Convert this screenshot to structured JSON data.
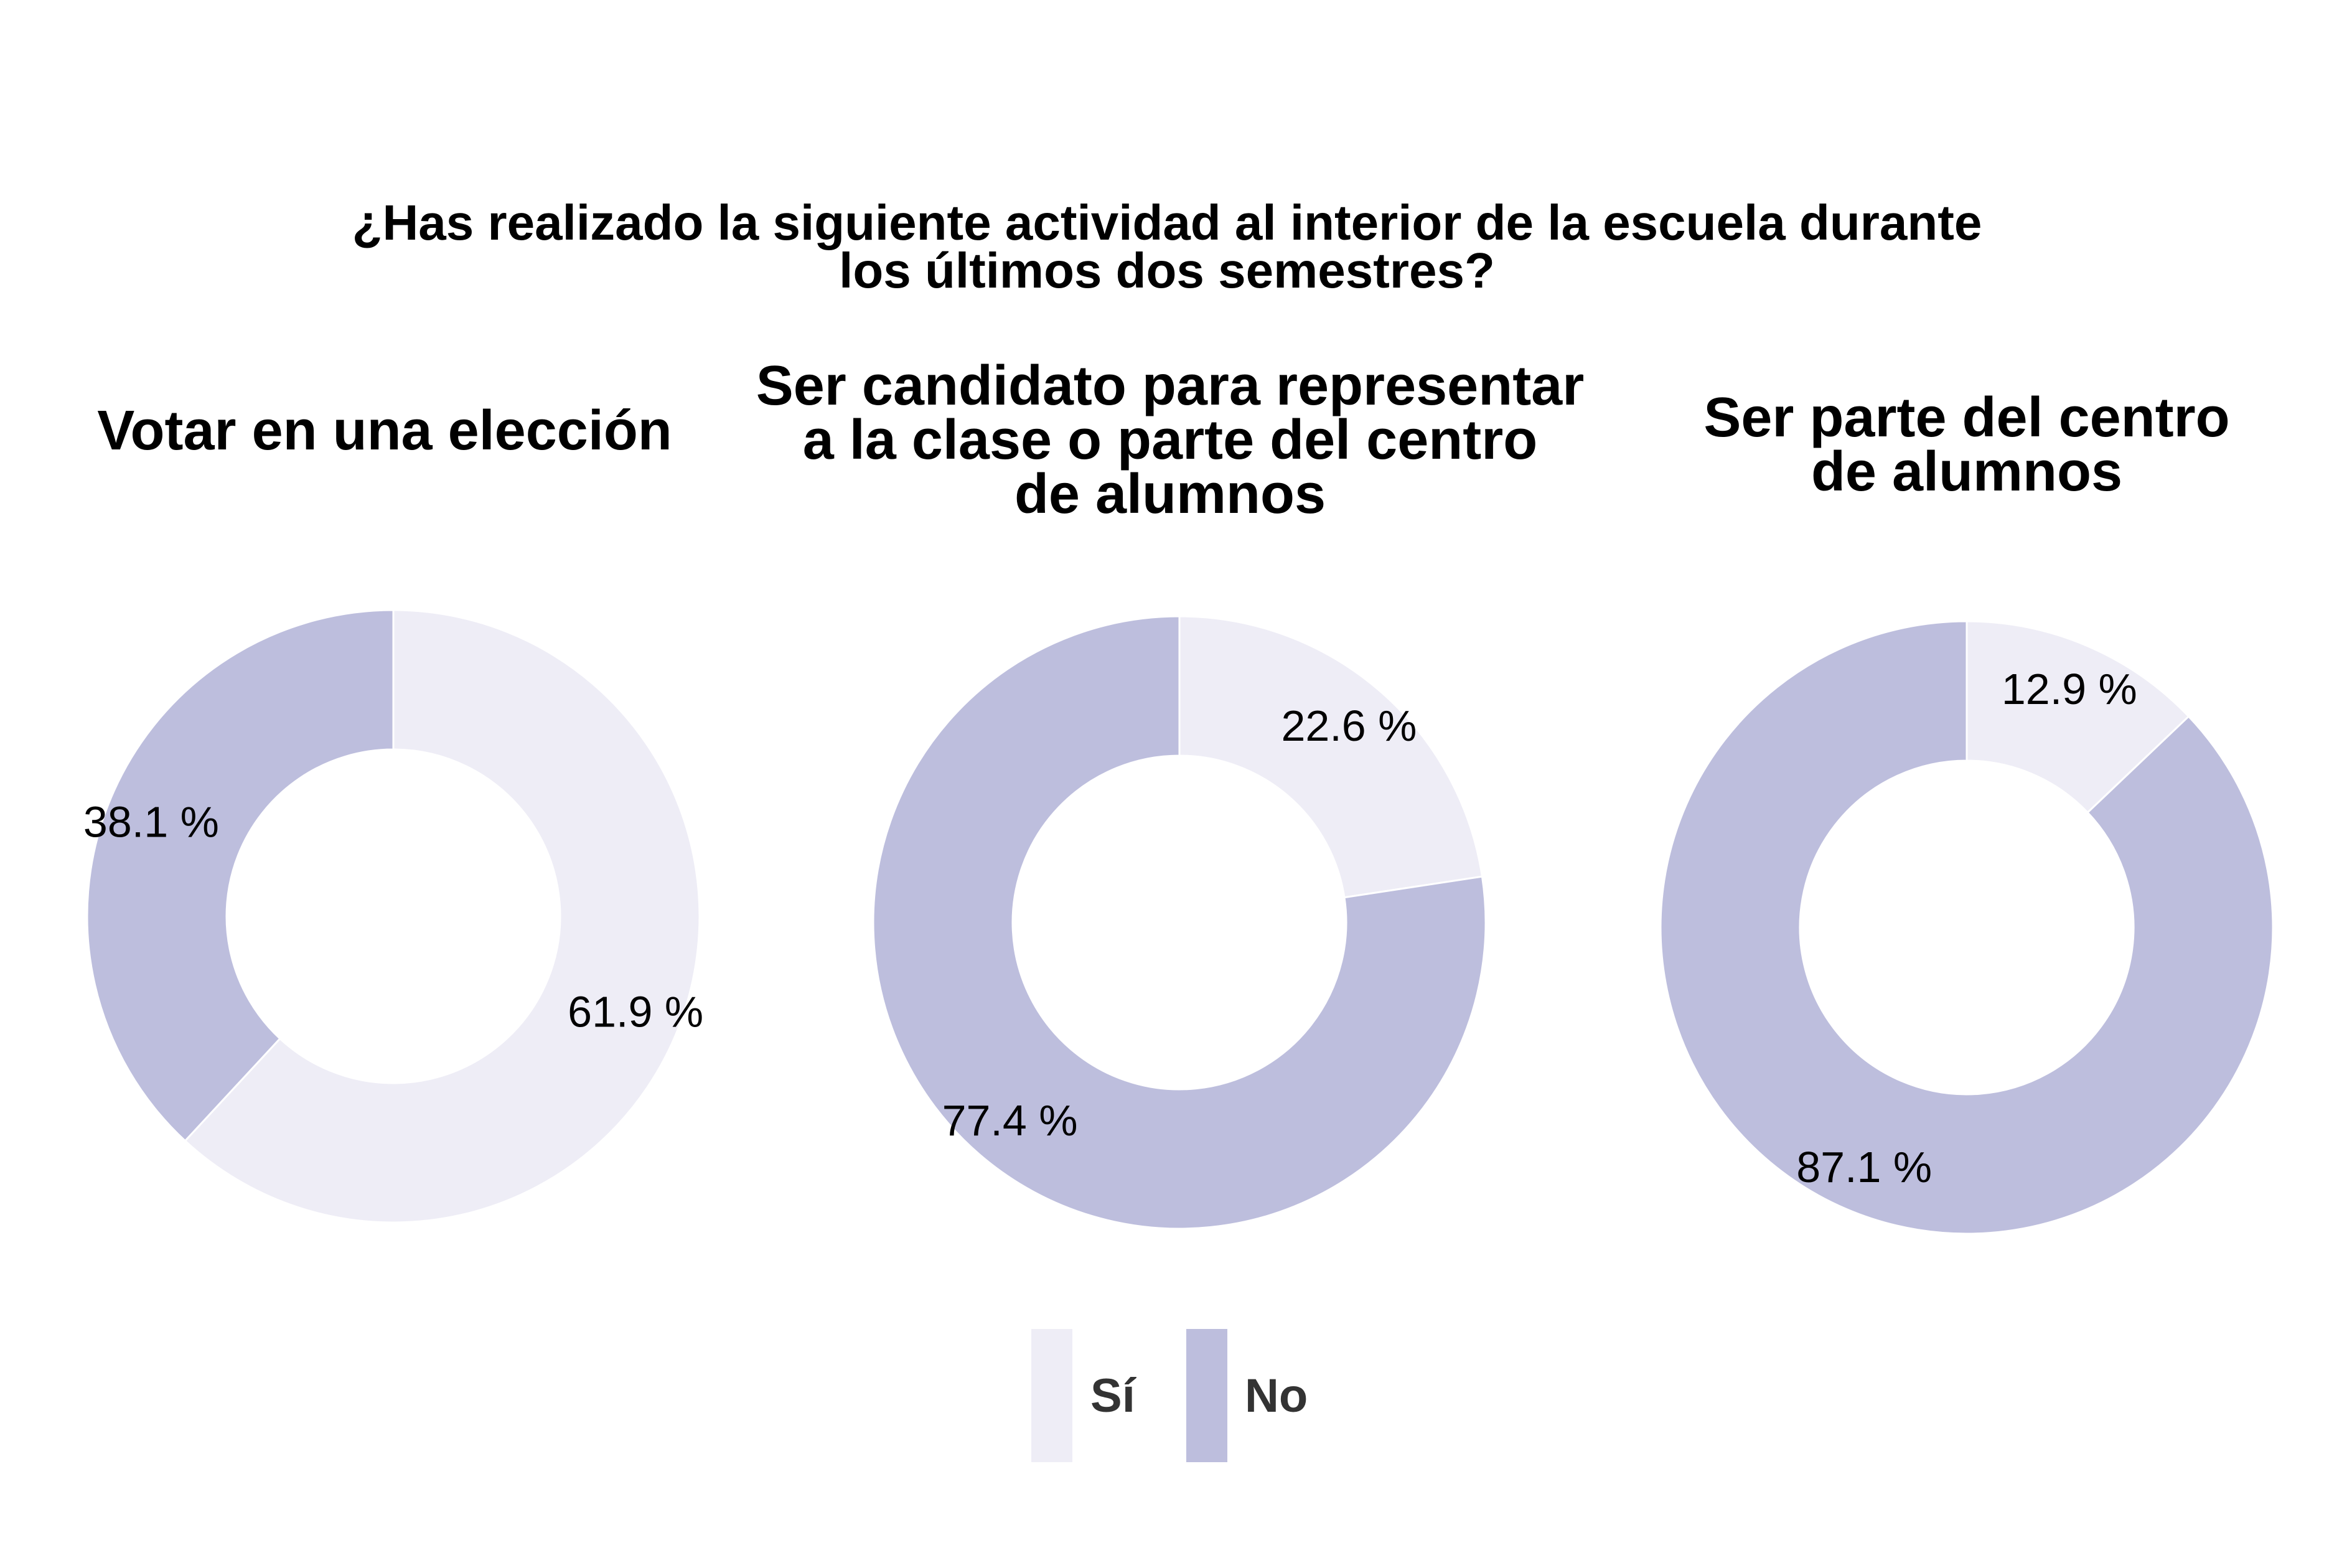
{
  "chart_data": {
    "type": "pie",
    "variant": "donut",
    "title_lines": [
      "¿Has realizado la siguiente actividad al interior de la escuela durante",
      "los últimos dos semestres?"
    ],
    "categories": [
      "Sí",
      "No"
    ],
    "colors": {
      "Sí": "#eeedf6",
      "No": "#bdbedd"
    },
    "value_suffix": " %",
    "panels": [
      {
        "title_lines": [
          "Votar en una elección"
        ],
        "values": {
          "Sí": 61.9,
          "No": 38.1
        }
      },
      {
        "title_lines": [
          "Ser candidato para representar",
          "a la clase o parte del centro",
          "de alumnos"
        ],
        "values": {
          "Sí": 22.6,
          "No": 77.4
        }
      },
      {
        "title_lines": [
          "Ser parte del centro",
          "de alumnos"
        ],
        "values": {
          "Sí": 12.9,
          "No": 87.1
        }
      }
    ],
    "legend": {
      "position": "bottom",
      "entries": [
        "Sí",
        "No"
      ]
    }
  }
}
